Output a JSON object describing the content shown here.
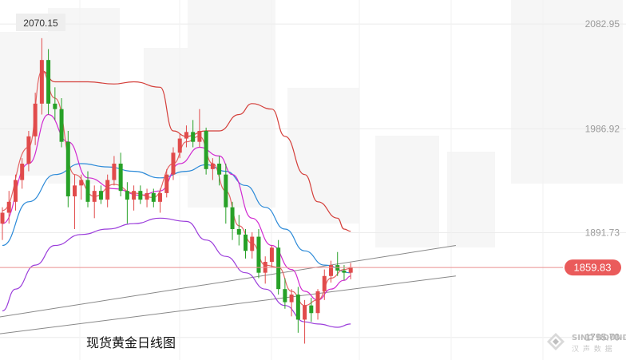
{
  "title": "现货黄金日线图",
  "max_label": "2070.15",
  "current_price_label": "1859.83",
  "watermark": {
    "brand": "SINO SOUND",
    "sub": "汉 声 数 据"
  },
  "colors": {
    "up": "#e14b4b",
    "down": "#27a127",
    "ma_red": "#e46464",
    "ma_magenta": "#d12bd1",
    "ma_blue": "#2c8ad8",
    "boll_upper": "#d43f3a",
    "boll_lower": "#9b3ddb",
    "price_tag_bg": "#ea5b5b",
    "trend": "#888888",
    "axis_text": "#9a9a9a"
  },
  "chart_data": {
    "type": "candlestick",
    "title": "现货黄金日线图",
    "ylim": [
      1775,
      2105
    ],
    "y_ticks": [
      {
        "value": 2082.95,
        "label": "2082.95"
      },
      {
        "value": 1986.92,
        "label": "1986.92"
      },
      {
        "value": 1891.73,
        "label": "1891.73"
      },
      {
        "value": 1795.7,
        "label": "1795.70"
      }
    ],
    "last_price": 1859.83,
    "max_marker": 2070.15,
    "ohlc": [
      [
        1900,
        1915,
        1885,
        1910
      ],
      [
        1910,
        1930,
        1900,
        1920
      ],
      [
        1920,
        1945,
        1912,
        1940
      ],
      [
        1940,
        1960,
        1932,
        1955
      ],
      [
        1955,
        1985,
        1948,
        1980
      ],
      [
        1980,
        2020,
        1972,
        2010
      ],
      [
        2010,
        2070,
        2000,
        2050
      ],
      [
        2050,
        2060,
        2000,
        2010
      ],
      [
        2010,
        2025,
        1995,
        2005
      ],
      [
        2005,
        2015,
        1970,
        1975
      ],
      [
        1975,
        1985,
        1915,
        1925
      ],
      [
        1925,
        1945,
        1895,
        1935
      ],
      [
        1935,
        1945,
        1922,
        1940
      ],
      [
        1940,
        1948,
        1915,
        1920
      ],
      [
        1920,
        1935,
        1905,
        1930
      ],
      [
        1930,
        1935,
        1918,
        1922
      ],
      [
        1922,
        1945,
        1915,
        1940
      ],
      [
        1940,
        1962,
        1935,
        1955
      ],
      [
        1955,
        1965,
        1925,
        1930
      ],
      [
        1930,
        1938,
        1900,
        1922
      ],
      [
        1922,
        1935,
        1912,
        1930
      ],
      [
        1930,
        1935,
        1918,
        1922
      ],
      [
        1922,
        1932,
        1915,
        1928
      ],
      [
        1928,
        1932,
        1915,
        1920
      ],
      [
        1920,
        1932,
        1910,
        1928
      ],
      [
        1928,
        1950,
        1924,
        1945
      ],
      [
        1945,
        1970,
        1940,
        1965
      ],
      [
        1965,
        1982,
        1960,
        1978
      ],
      [
        1978,
        1990,
        1970,
        1984
      ],
      [
        1984,
        1995,
        1970,
        1975
      ],
      [
        1975,
        2005,
        1970,
        1985
      ],
      [
        1985,
        1988,
        1945,
        1950
      ],
      [
        1950,
        1960,
        1940,
        1955
      ],
      [
        1955,
        1962,
        1935,
        1945
      ],
      [
        1945,
        1955,
        1900,
        1915
      ],
      [
        1915,
        1920,
        1885,
        1895
      ],
      [
        1895,
        1908,
        1880,
        1890
      ],
      [
        1890,
        1895,
        1868,
        1875
      ],
      [
        1875,
        1892,
        1868,
        1888
      ],
      [
        1888,
        1895,
        1850,
        1855
      ],
      [
        1855,
        1870,
        1845,
        1865
      ],
      [
        1865,
        1880,
        1860,
        1878
      ],
      [
        1878,
        1885,
        1835,
        1840
      ],
      [
        1840,
        1850,
        1822,
        1828
      ],
      [
        1828,
        1840,
        1815,
        1835
      ],
      [
        1835,
        1842,
        1800,
        1812
      ],
      [
        1812,
        1830,
        1790,
        1825
      ],
      [
        1825,
        1832,
        1810,
        1818
      ],
      [
        1818,
        1840,
        1812,
        1838
      ],
      [
        1838,
        1858,
        1830,
        1852
      ],
      [
        1852,
        1866,
        1846,
        1862
      ],
      [
        1862,
        1874,
        1852,
        1857
      ],
      [
        1857,
        1862,
        1848,
        1855
      ],
      [
        1855,
        1864,
        1849,
        1860
      ]
    ],
    "overlays": [
      {
        "name": "boll_upper",
        "color_key": "boll_upper",
        "points": [
          [
            6,
            2040
          ],
          [
            8,
            2030
          ],
          [
            13,
            2030
          ],
          [
            17,
            2028
          ],
          [
            20,
            2030
          ],
          [
            24,
            2025
          ],
          [
            26,
            1985
          ],
          [
            28,
            1980
          ],
          [
            31,
            1985
          ],
          [
            33,
            1985
          ],
          [
            36,
            2000
          ],
          [
            38,
            2010
          ],
          [
            41,
            2005
          ],
          [
            43,
            1980
          ],
          [
            46,
            1945
          ],
          [
            48,
            1920
          ],
          [
            51,
            1905
          ],
          [
            52,
            1895
          ],
          [
            53,
            1893
          ]
        ]
      },
      {
        "name": "boll_lower",
        "color_key": "boll_lower",
        "points": [
          [
            0,
            1820
          ],
          [
            2,
            1840
          ],
          [
            5,
            1862
          ],
          [
            8,
            1880
          ],
          [
            12,
            1890
          ],
          [
            16,
            1895
          ],
          [
            20,
            1900
          ],
          [
            24,
            1905
          ],
          [
            28,
            1902
          ],
          [
            31,
            1885
          ],
          [
            34,
            1870
          ],
          [
            37,
            1855
          ],
          [
            40,
            1840
          ],
          [
            43,
            1825
          ],
          [
            46,
            1810
          ],
          [
            48,
            1808
          ],
          [
            51,
            1805
          ],
          [
            53,
            1808
          ]
        ]
      },
      {
        "name": "ma_blue",
        "color_key": "ma_blue",
        "points": [
          [
            0,
            1880
          ],
          [
            4,
            1920
          ],
          [
            8,
            1945
          ],
          [
            12,
            1955
          ],
          [
            16,
            1952
          ],
          [
            20,
            1948
          ],
          [
            24,
            1942
          ],
          [
            28,
            1948
          ],
          [
            31,
            1954
          ],
          [
            34,
            1948
          ],
          [
            37,
            1935
          ],
          [
            40,
            1915
          ],
          [
            43,
            1895
          ],
          [
            46,
            1875
          ],
          [
            49,
            1862
          ],
          [
            53,
            1855
          ]
        ]
      },
      {
        "name": "ma_magenta",
        "color_key": "ma_magenta",
        "points": [
          [
            0,
            1900
          ],
          [
            4,
            1955
          ],
          [
            7,
            2000
          ],
          [
            10,
            1975
          ],
          [
            13,
            1942
          ],
          [
            17,
            1932
          ],
          [
            21,
            1926
          ],
          [
            24,
            1930
          ],
          [
            27,
            1955
          ],
          [
            30,
            1970
          ],
          [
            33,
            1962
          ],
          [
            35,
            1945
          ],
          [
            38,
            1905
          ],
          [
            41,
            1880
          ],
          [
            44,
            1858
          ],
          [
            46,
            1838
          ],
          [
            48,
            1830
          ],
          [
            50,
            1840
          ],
          [
            52,
            1848
          ],
          [
            53,
            1852
          ]
        ]
      },
      {
        "name": "ma_red",
        "color_key": "ma_red",
        "points": [
          [
            0,
            1912
          ],
          [
            4,
            1970
          ],
          [
            6,
            2040
          ],
          [
            8,
            2015
          ],
          [
            11,
            1945
          ],
          [
            14,
            1925
          ],
          [
            17,
            1936
          ],
          [
            20,
            1928
          ],
          [
            23,
            1924
          ],
          [
            26,
            1955
          ],
          [
            28,
            1975
          ],
          [
            30,
            1980
          ],
          [
            32,
            1955
          ],
          [
            34,
            1930
          ],
          [
            36,
            1898
          ],
          [
            38,
            1882
          ],
          [
            40,
            1862
          ],
          [
            42,
            1860
          ],
          [
            44,
            1838
          ],
          [
            46,
            1825
          ],
          [
            48,
            1830
          ],
          [
            50,
            1850
          ],
          [
            52,
            1858
          ],
          [
            53,
            1859
          ]
        ]
      }
    ],
    "trendlines": [
      {
        "name": "trend_upper",
        "from": [
          -3,
          1812
        ],
        "to": [
          69,
          1880
        ]
      },
      {
        "name": "trend_lower",
        "from": [
          -3,
          1797
        ],
        "to": [
          69,
          1852
        ]
      }
    ]
  }
}
